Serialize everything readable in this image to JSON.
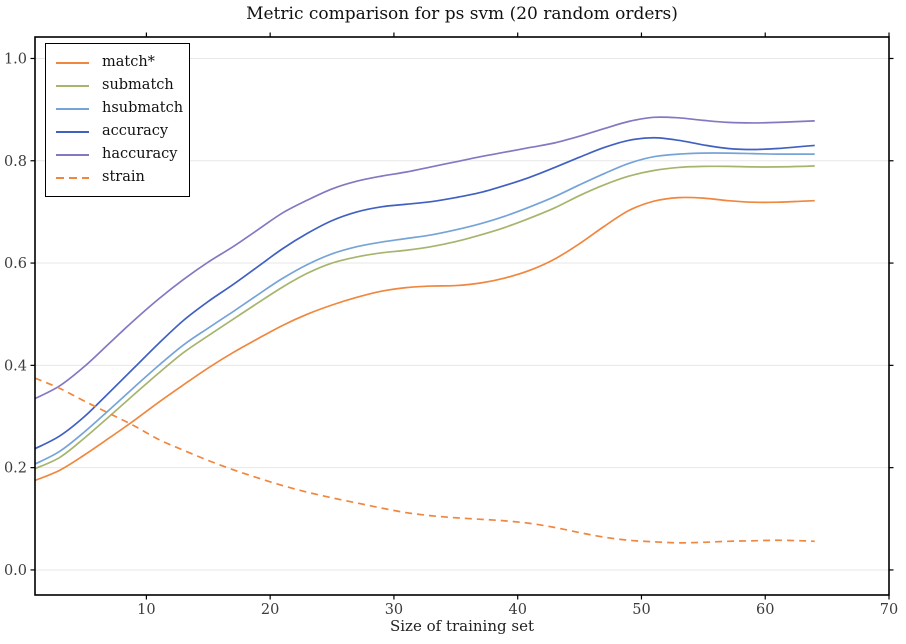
{
  "chart_data": {
    "type": "line",
    "title": "Metric comparison for ps svm (20 random orders)",
    "xlabel": "Size of training set",
    "ylabel": "",
    "xlim": [
      1,
      70
    ],
    "ylim": [
      -0.049,
      1.042
    ],
    "xticks": [
      10,
      20,
      30,
      40,
      50,
      60,
      70
    ],
    "yticks": [
      0.0,
      0.2,
      0.4,
      0.6,
      0.8,
      1.0
    ],
    "ytick_labels": [
      "0.0",
      "0.2",
      "0.4",
      "0.6",
      "0.8",
      "1.0"
    ],
    "grid": "horizontal",
    "legend_position": "upper-left",
    "frame_color": "#000000",
    "grid_color": "#e7e7e7",
    "tick_label_color": "#3c3c3c",
    "x": [
      1,
      3,
      5,
      7,
      9,
      11,
      13,
      15,
      17,
      19,
      21,
      23,
      25,
      27,
      29,
      31,
      33,
      35,
      37,
      39,
      41,
      43,
      45,
      47,
      49,
      51,
      53,
      55,
      57,
      59,
      61,
      63,
      64
    ],
    "series": [
      {
        "name": "match*",
        "color": "#f0873f",
        "dash": false,
        "values": [
          0.175,
          0.195,
          0.225,
          0.258,
          0.292,
          0.328,
          0.362,
          0.395,
          0.425,
          0.452,
          0.478,
          0.5,
          0.518,
          0.533,
          0.545,
          0.552,
          0.555,
          0.556,
          0.561,
          0.571,
          0.586,
          0.608,
          0.638,
          0.672,
          0.703,
          0.721,
          0.728,
          0.727,
          0.722,
          0.719,
          0.719,
          0.721,
          0.722
        ]
      },
      {
        "name": "submatch",
        "color": "#a5b56d",
        "dash": false,
        "values": [
          0.198,
          0.22,
          0.258,
          0.3,
          0.343,
          0.385,
          0.425,
          0.458,
          0.49,
          0.522,
          0.553,
          0.58,
          0.6,
          0.612,
          0.62,
          0.625,
          0.632,
          0.642,
          0.655,
          0.67,
          0.688,
          0.708,
          0.732,
          0.753,
          0.77,
          0.781,
          0.787,
          0.789,
          0.789,
          0.788,
          0.788,
          0.789,
          0.79
        ]
      },
      {
        "name": "hsubmatch",
        "color": "#76a4d8",
        "dash": false,
        "values": [
          0.207,
          0.232,
          0.27,
          0.313,
          0.357,
          0.4,
          0.44,
          0.473,
          0.505,
          0.538,
          0.57,
          0.597,
          0.618,
          0.632,
          0.641,
          0.648,
          0.655,
          0.665,
          0.677,
          0.692,
          0.71,
          0.73,
          0.753,
          0.775,
          0.795,
          0.808,
          0.813,
          0.815,
          0.815,
          0.814,
          0.813,
          0.813,
          0.813
        ]
      },
      {
        "name": "accuracy",
        "color": "#4161c1",
        "dash": false,
        "values": [
          0.237,
          0.262,
          0.3,
          0.347,
          0.395,
          0.443,
          0.488,
          0.525,
          0.558,
          0.593,
          0.628,
          0.658,
          0.683,
          0.7,
          0.71,
          0.715,
          0.72,
          0.728,
          0.738,
          0.752,
          0.768,
          0.787,
          0.807,
          0.826,
          0.84,
          0.845,
          0.84,
          0.831,
          0.824,
          0.822,
          0.824,
          0.828,
          0.83
        ]
      },
      {
        "name": "haccuracy",
        "color": "#8478c3",
        "dash": false,
        "values": [
          0.335,
          0.36,
          0.398,
          0.443,
          0.488,
          0.53,
          0.568,
          0.602,
          0.632,
          0.665,
          0.698,
          0.723,
          0.745,
          0.76,
          0.77,
          0.778,
          0.788,
          0.798,
          0.808,
          0.817,
          0.826,
          0.835,
          0.848,
          0.863,
          0.877,
          0.885,
          0.884,
          0.879,
          0.875,
          0.874,
          0.875,
          0.877,
          0.878
        ]
      },
      {
        "name": "strain",
        "color": "#f0873f",
        "dash": true,
        "values": [
          0.375,
          0.355,
          0.33,
          0.306,
          0.282,
          0.255,
          0.234,
          0.214,
          0.196,
          0.18,
          0.165,
          0.152,
          0.141,
          0.131,
          0.121,
          0.112,
          0.106,
          0.102,
          0.099,
          0.096,
          0.091,
          0.083,
          0.073,
          0.064,
          0.058,
          0.055,
          0.053,
          0.054,
          0.056,
          0.057,
          0.058,
          0.057,
          0.056
        ]
      }
    ]
  }
}
